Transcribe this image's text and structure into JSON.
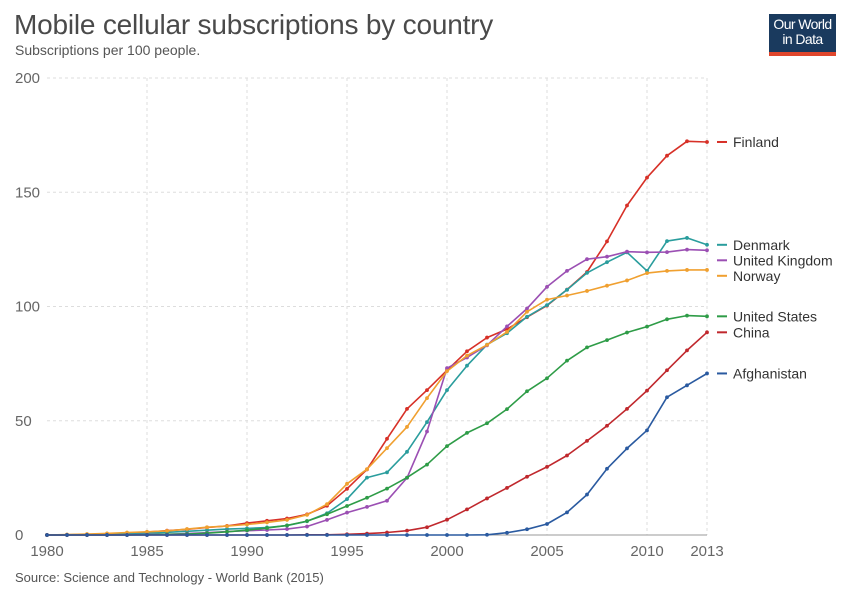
{
  "header": {
    "title": "Mobile cellular subscriptions by country",
    "subtitle": "Subscriptions per 100 people."
  },
  "logo": {
    "line1": "Our World",
    "line2": "in Data",
    "bg_color": "#1a3a5e",
    "accent_color": "#e0462c"
  },
  "footer": {
    "source": "Source: Science and Technology - World Bank (2015)"
  },
  "chart_data": {
    "type": "line",
    "title": "Mobile cellular subscriptions by country",
    "subtitle": "Subscriptions per 100 people.",
    "xlabel": "",
    "ylabel": "",
    "xlim": [
      1980,
      2013
    ],
    "ylim": [
      0,
      200
    ],
    "x_ticks": [
      1980,
      1985,
      1990,
      1995,
      2000,
      2005,
      2010,
      2013
    ],
    "y_ticks": [
      0,
      50,
      100,
      150,
      200
    ],
    "grid": true,
    "legend": "right (labels at line ends)",
    "x": [
      1980,
      1981,
      1982,
      1983,
      1984,
      1985,
      1986,
      1987,
      1988,
      1989,
      1990,
      1991,
      1992,
      1993,
      1994,
      1995,
      1996,
      1997,
      1998,
      1999,
      2000,
      2001,
      2002,
      2003,
      2004,
      2005,
      2006,
      2007,
      2008,
      2009,
      2010,
      2011,
      2012,
      2013
    ],
    "series": [
      {
        "name": "Finland",
        "color": "#d73027",
        "values": [
          0,
          0.1,
          0.2,
          0.4,
          0.7,
          1.3,
          1.9,
          2.5,
          3.3,
          4.0,
          5.2,
          6.2,
          7.2,
          9.0,
          12.8,
          20.2,
          28.7,
          42.1,
          55.2,
          63.4,
          72.1,
          80.4,
          86.4,
          90.1,
          95.3,
          100.4,
          107.4,
          115.1,
          128.5,
          144.2,
          156.4,
          166.0,
          172.3,
          172.0
        ]
      },
      {
        "name": "Denmark",
        "color": "#2a9d9d",
        "values": [
          0,
          0.1,
          0.2,
          0.3,
          0.5,
          0.8,
          1.2,
          1.6,
          2.1,
          2.6,
          2.9,
          3.3,
          4.1,
          6.0,
          9.5,
          15.7,
          25.1,
          27.4,
          36.4,
          49.4,
          63.4,
          74.1,
          83.3,
          88.3,
          95.5,
          100.6,
          107.3,
          114.7,
          119.4,
          123.7,
          115.6,
          128.6,
          130.0,
          127.0
        ]
      },
      {
        "name": "United Kingdom",
        "color": "#9b4fb3",
        "values": [
          0,
          0,
          0,
          0,
          0.1,
          0.2,
          0.3,
          0.6,
          1.0,
          1.5,
          1.9,
          2.2,
          2.6,
          3.7,
          6.6,
          9.8,
          12.3,
          15.0,
          25.0,
          45.3,
          73.0,
          77.7,
          83.0,
          91.3,
          99.1,
          108.6,
          115.6,
          120.7,
          121.8,
          124.0,
          123.7,
          123.8,
          124.9,
          124.6
        ]
      },
      {
        "name": "Norway",
        "color": "#f0a030",
        "values": [
          0,
          0.2,
          0.4,
          0.7,
          1.1,
          1.4,
          1.8,
          2.6,
          3.4,
          3.9,
          4.6,
          5.5,
          6.6,
          8.8,
          13.5,
          22.4,
          28.8,
          38.0,
          47.3,
          59.9,
          71.7,
          78.5,
          83.2,
          88.9,
          97.7,
          103.0,
          104.8,
          106.8,
          109.1,
          111.4,
          114.6,
          115.6,
          116.0,
          116.0
        ]
      },
      {
        "name": "United States",
        "color": "#2e9c47",
        "values": [
          0,
          0,
          0,
          0,
          0,
          0.1,
          0.3,
          0.4,
          0.8,
          1.4,
          2.1,
          3.0,
          4.2,
          6.1,
          9.1,
          12.7,
          16.3,
          20.3,
          25.1,
          30.8,
          38.9,
          44.7,
          48.9,
          55.1,
          62.9,
          68.6,
          76.3,
          82.1,
          85.3,
          88.6,
          91.2,
          94.4,
          96.0,
          95.7
        ]
      },
      {
        "name": "China",
        "color": "#c0282d",
        "values": [
          0,
          0,
          0,
          0,
          0,
          0,
          0,
          0,
          0,
          0,
          0,
          0,
          0,
          0.1,
          0.1,
          0.3,
          0.6,
          1.1,
          1.9,
          3.4,
          6.7,
          11.2,
          16.0,
          20.6,
          25.5,
          29.8,
          34.8,
          41.2,
          47.8,
          55.2,
          63.2,
          72.1,
          80.8,
          88.7
        ]
      },
      {
        "name": "Afghanistan",
        "color": "#2a5aa0",
        "values": [
          0,
          0,
          0,
          0,
          0,
          0,
          0,
          0,
          0,
          0,
          0,
          0,
          0,
          0,
          0,
          0,
          0,
          0,
          0,
          0,
          0,
          0,
          0.1,
          1.0,
          2.5,
          4.8,
          9.9,
          17.7,
          29.0,
          37.9,
          45.8,
          60.3,
          65.5,
          70.7
        ]
      }
    ]
  }
}
